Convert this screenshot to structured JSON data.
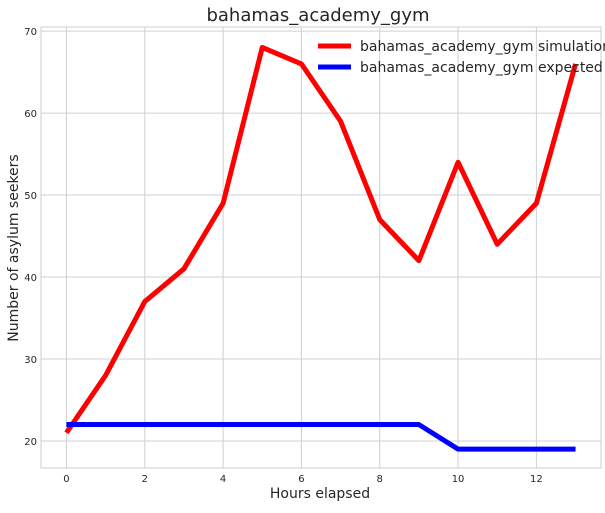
{
  "chart_data": {
    "type": "line",
    "title": "bahamas_academy_gym",
    "xlabel": "Hours elapsed",
    "ylabel": "Number of asylum seekers",
    "xlim": [
      -0.65,
      13.65
    ],
    "ylim": [
      16.7,
      70.5
    ],
    "xticks": [
      0,
      2,
      4,
      6,
      8,
      10,
      12
    ],
    "yticks": [
      20,
      30,
      40,
      50,
      60,
      70
    ],
    "grid": true,
    "legend_position": "top-right",
    "x": [
      0,
      1,
      2,
      3,
      4,
      5,
      6,
      7,
      8,
      9,
      10,
      11,
      12,
      13
    ],
    "series": [
      {
        "name": "bahamas_academy_gym simulation",
        "color": "#ff0000",
        "values": [
          21,
          28,
          37,
          41,
          49,
          68,
          66,
          59,
          47,
          42,
          54,
          44,
          49,
          66
        ]
      },
      {
        "name": "bahamas_academy_gym expected",
        "color": "#0000ff",
        "values": [
          22,
          22,
          22,
          22,
          22,
          22,
          22,
          22,
          22,
          22,
          19,
          19,
          19,
          19
        ]
      }
    ]
  }
}
